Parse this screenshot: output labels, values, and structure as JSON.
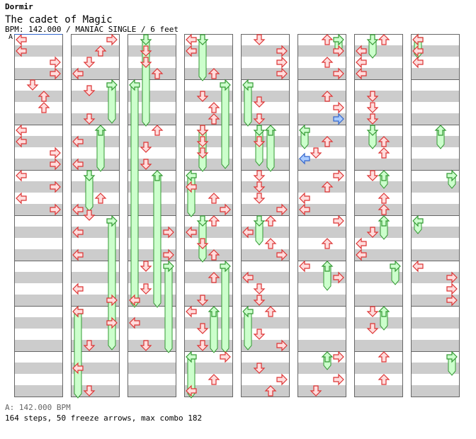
{
  "header": {
    "artist": "Dormir",
    "title": "The cadet of Magic",
    "info": "BPM: 142.000 / MANIAC SINGLE / 6 feet",
    "bpm_marker": "A"
  },
  "footer": {
    "bpm_legend": "A: 142.000 BPM",
    "stats": "164 steps, 50 freeze arrows, max combo 182"
  },
  "colors": {
    "stripe": "#cccccc",
    "arrow_fill": "#ffdddd",
    "arrow_stroke": "#dd3333",
    "freeze_fill": "#ccffcc",
    "freeze_stroke": "#339933",
    "shock_fill": "#aaccff",
    "shock_stroke": "#3366cc"
  },
  "chart_data": {
    "type": "step_chart",
    "columns": 8,
    "measures_per_column": 8,
    "lanes": [
      "left",
      "down",
      "up",
      "right"
    ],
    "notes": [
      {
        "m": 0,
        "b": 0,
        "l": 0
      },
      {
        "m": 0,
        "b": 2,
        "l": 0
      },
      {
        "m": 0,
        "b": 4,
        "l": 3
      },
      {
        "m": 0,
        "b": 6,
        "l": 3
      },
      {
        "m": 1,
        "b": 0,
        "l": 1
      },
      {
        "m": 1,
        "b": 2,
        "l": 2
      },
      {
        "m": 1,
        "b": 4,
        "l": 2
      },
      {
        "m": 2,
        "b": 0,
        "l": 0
      },
      {
        "m": 2,
        "b": 2,
        "l": 0
      },
      {
        "m": 2,
        "b": 4,
        "l": 3
      },
      {
        "m": 2,
        "b": 6,
        "l": 3
      },
      {
        "m": 3,
        "b": 0,
        "l": 0
      },
      {
        "m": 3,
        "b": 2,
        "l": 3
      },
      {
        "m": 3,
        "b": 4,
        "l": 0
      },
      {
        "m": 3,
        "b": 6,
        "l": 3
      },
      {
        "m": 8,
        "b": 0,
        "l": 3
      },
      {
        "m": 8,
        "b": 2,
        "l": 2
      },
      {
        "m": 8,
        "b": 4,
        "l": 1
      },
      {
        "m": 8,
        "b": 6,
        "l": 0
      },
      {
        "m": 9,
        "b": 1,
        "l": 1
      },
      {
        "m": 9,
        "b": 6,
        "l": 1
      },
      {
        "m": 10,
        "b": 2,
        "l": 0
      },
      {
        "m": 10,
        "b": 6,
        "l": 0
      },
      {
        "m": 11,
        "b": 4,
        "l": 2
      },
      {
        "m": 11,
        "b": 6,
        "l": 0
      },
      {
        "m": 11,
        "b": 7,
        "l": 1
      },
      {
        "m": 12,
        "b": 2,
        "l": 0
      },
      {
        "m": 12,
        "b": 6,
        "l": 0
      },
      {
        "m": 13,
        "b": 4,
        "l": 0
      },
      {
        "m": 13,
        "b": 6,
        "l": 3
      },
      {
        "m": 14,
        "b": 0,
        "l": 0
      },
      {
        "m": 14,
        "b": 2,
        "l": 3
      },
      {
        "m": 14,
        "b": 6,
        "l": 1
      },
      {
        "m": 15,
        "b": 2,
        "l": 0
      },
      {
        "m": 15,
        "b": 6,
        "l": 1
      },
      {
        "m": 16,
        "b": 2,
        "l": 1
      },
      {
        "m": 16,
        "b": 4,
        "l": 1
      },
      {
        "m": 16,
        "b": 6,
        "l": 2
      },
      {
        "m": 18,
        "b": 0,
        "l": 2
      },
      {
        "m": 18,
        "b": 3,
        "l": 1
      },
      {
        "m": 18,
        "b": 6,
        "l": 1
      },
      {
        "m": 20,
        "b": 2,
        "l": 3
      },
      {
        "m": 20,
        "b": 6,
        "l": 3
      },
      {
        "m": 21,
        "b": 0,
        "l": 1
      },
      {
        "m": 21,
        "b": 4,
        "l": 1
      },
      {
        "m": 21,
        "b": 6,
        "l": 0
      },
      {
        "m": 22,
        "b": 2,
        "l": 0
      },
      {
        "m": 22,
        "b": 6,
        "l": 1
      },
      {
        "m": 24,
        "b": 0,
        "l": 0
      },
      {
        "m": 24,
        "b": 2,
        "l": 0
      },
      {
        "m": 24,
        "b": 6,
        "l": 2
      },
      {
        "m": 25,
        "b": 2,
        "l": 1
      },
      {
        "m": 25,
        "b": 4,
        "l": 2
      },
      {
        "m": 25,
        "b": 6,
        "l": 2
      },
      {
        "m": 26,
        "b": 0,
        "l": 1
      },
      {
        "m": 26,
        "b": 2,
        "l": 1
      },
      {
        "m": 26,
        "b": 4,
        "l": 1
      },
      {
        "m": 27,
        "b": 2,
        "l": 0
      },
      {
        "m": 27,
        "b": 4,
        "l": 2
      },
      {
        "m": 27,
        "b": 6,
        "l": 3
      },
      {
        "m": 28,
        "b": 0,
        "l": 2
      },
      {
        "m": 28,
        "b": 2,
        "l": 0
      },
      {
        "m": 28,
        "b": 4,
        "l": 1
      },
      {
        "m": 28,
        "b": 6,
        "l": 2
      },
      {
        "m": 29,
        "b": 2,
        "l": 2
      },
      {
        "m": 29,
        "b": 6,
        "l": 1
      },
      {
        "m": 30,
        "b": 0,
        "l": 0
      },
      {
        "m": 30,
        "b": 3,
        "l": 1
      },
      {
        "m": 30,
        "b": 6,
        "l": 1
      },
      {
        "m": 31,
        "b": 0,
        "l": 3
      },
      {
        "m": 31,
        "b": 4,
        "l": 2
      },
      {
        "m": 31,
        "b": 6,
        "l": 0
      },
      {
        "m": 32,
        "b": 0,
        "l": 1
      },
      {
        "m": 32,
        "b": 2,
        "l": 3
      },
      {
        "m": 32,
        "b": 4,
        "l": 3
      },
      {
        "m": 32,
        "b": 6,
        "l": 3
      },
      {
        "m": 33,
        "b": 3,
        "l": 1
      },
      {
        "m": 33,
        "b": 6,
        "l": 1
      },
      {
        "m": 34,
        "b": 2,
        "l": 1
      },
      {
        "m": 35,
        "b": 0,
        "l": 1
      },
      {
        "m": 35,
        "b": 2,
        "l": 1
      },
      {
        "m": 35,
        "b": 4,
        "l": 1
      },
      {
        "m": 35,
        "b": 6,
        "l": 3
      },
      {
        "m": 36,
        "b": 0,
        "l": 2
      },
      {
        "m": 36,
        "b": 2,
        "l": 0
      },
      {
        "m": 36,
        "b": 4,
        "l": 2
      },
      {
        "m": 36,
        "b": 6,
        "l": 3
      },
      {
        "m": 37,
        "b": 2,
        "l": 0
      },
      {
        "m": 37,
        "b": 4,
        "l": 1
      },
      {
        "m": 37,
        "b": 6,
        "l": 1
      },
      {
        "m": 38,
        "b": 0,
        "l": 2
      },
      {
        "m": 38,
        "b": 4,
        "l": 1
      },
      {
        "m": 38,
        "b": 6,
        "l": 3
      },
      {
        "m": 39,
        "b": 2,
        "l": 1
      },
      {
        "m": 39,
        "b": 4,
        "l": 3
      },
      {
        "m": 39,
        "b": 6,
        "l": 2
      },
      {
        "m": 40,
        "b": 0,
        "l": 2
      },
      {
        "m": 40,
        "b": 2,
        "l": 3
      },
      {
        "m": 40,
        "b": 4,
        "l": 2
      },
      {
        "m": 40,
        "b": 6,
        "l": 3
      },
      {
        "m": 41,
        "b": 2,
        "l": 2
      },
      {
        "m": 41,
        "b": 4,
        "l": 3
      },
      {
        "m": 42,
        "b": 2,
        "l": 2
      },
      {
        "m": 42,
        "b": 4,
        "l": 1
      },
      {
        "m": 43,
        "b": 0,
        "l": 3
      },
      {
        "m": 43,
        "b": 2,
        "l": 2
      },
      {
        "m": 43,
        "b": 4,
        "l": 0
      },
      {
        "m": 43,
        "b": 6,
        "l": 0
      },
      {
        "m": 44,
        "b": 0,
        "l": 3
      },
      {
        "m": 44,
        "b": 4,
        "l": 2
      },
      {
        "m": 45,
        "b": 0,
        "l": 0
      },
      {
        "m": 45,
        "b": 2,
        "l": 3
      },
      {
        "m": 47,
        "b": 0,
        "l": 3
      },
      {
        "m": 47,
        "b": 4,
        "l": 3
      },
      {
        "m": 47,
        "b": 6,
        "l": 1
      },
      {
        "m": 48,
        "b": 0,
        "l": 2
      },
      {
        "m": 48,
        "b": 2,
        "l": 0
      },
      {
        "m": 48,
        "b": 4,
        "l": 0
      },
      {
        "m": 48,
        "b": 6,
        "l": 0
      },
      {
        "m": 49,
        "b": 2,
        "l": 1
      },
      {
        "m": 49,
        "b": 4,
        "l": 1
      },
      {
        "m": 49,
        "b": 6,
        "l": 1
      },
      {
        "m": 50,
        "b": 2,
        "l": 2
      },
      {
        "m": 50,
        "b": 4,
        "l": 2
      },
      {
        "m": 51,
        "b": 0,
        "l": 1
      },
      {
        "m": 51,
        "b": 4,
        "l": 2
      },
      {
        "m": 51,
        "b": 6,
        "l": 2
      },
      {
        "m": 52,
        "b": 2,
        "l": 1
      },
      {
        "m": 52,
        "b": 4,
        "l": 0
      },
      {
        "m": 52,
        "b": 6,
        "l": 0
      },
      {
        "m": 54,
        "b": 0,
        "l": 1
      },
      {
        "m": 54,
        "b": 3,
        "l": 1
      },
      {
        "m": 55,
        "b": 0,
        "l": 2
      },
      {
        "m": 55,
        "b": 4,
        "l": 2
      },
      {
        "m": 56,
        "b": 0,
        "l": 0
      },
      {
        "m": 56,
        "b": 2,
        "l": 0
      },
      {
        "m": 56,
        "b": 4,
        "l": 0
      },
      {
        "m": 61,
        "b": 0,
        "l": 0
      },
      {
        "m": 61,
        "b": 2,
        "l": 3
      },
      {
        "m": 61,
        "b": 4,
        "l": 3
      },
      {
        "m": 61,
        "b": 6,
        "l": 3
      }
    ],
    "shock_arrows": [
      {
        "m": 41,
        "b": 6,
        "l": 3
      },
      {
        "m": 42,
        "b": 5,
        "l": 0
      }
    ],
    "freezes": [
      {
        "m": 0,
        "b": 0,
        "len": 0,
        "l": 0,
        "sm": 0,
        "sb": 0,
        "em": 0,
        "eb": 0
      },
      {
        "sm": 9,
        "sb": 0,
        "em": 9,
        "eb": 7.5,
        "l": 3
      },
      {
        "sm": 10,
        "sb": 0,
        "em": 10,
        "eb": 8,
        "l": 2
      },
      {
        "sm": 11,
        "sb": 0,
        "em": 11,
        "eb": 7,
        "l": 1
      },
      {
        "sm": 12,
        "sb": 0,
        "em": 14,
        "eb": 7.5,
        "l": 3
      },
      {
        "sm": 14,
        "sb": 0,
        "em": 15,
        "eb": 8,
        "l": 0
      },
      {
        "sm": 16,
        "sb": 0,
        "em": 17,
        "eb": 8,
        "l": 1
      },
      {
        "sm": 17,
        "sb": 0,
        "em": 21,
        "eb": 8,
        "l": 0
      },
      {
        "sm": 19,
        "sb": 0,
        "em": 21,
        "eb": 8,
        "l": 2
      },
      {
        "sm": 21,
        "sb": 0,
        "em": 22,
        "eb": 8,
        "l": 3
      },
      {
        "sm": 24,
        "sb": 0,
        "em": 24,
        "eb": 8,
        "l": 1
      },
      {
        "sm": 25,
        "sb": 0,
        "em": 26,
        "eb": 7.5,
        "l": 3
      },
      {
        "sm": 26,
        "sb": 0,
        "em": 26,
        "eb": 8,
        "l": 1
      },
      {
        "sm": 27,
        "sb": 0,
        "em": 27,
        "eb": 8,
        "l": 0
      },
      {
        "sm": 28,
        "sb": 0,
        "em": 28,
        "eb": 8,
        "l": 1
      },
      {
        "sm": 29,
        "sb": 0,
        "em": 30,
        "eb": 8,
        "l": 3
      },
      {
        "sm": 30,
        "sb": 0,
        "em": 30,
        "eb": 8,
        "l": 2
      },
      {
        "sm": 31,
        "sb": 0,
        "em": 31,
        "eb": 8,
        "l": 0
      },
      {
        "sm": 33,
        "sb": 0,
        "em": 33,
        "eb": 8,
        "l": 0
      },
      {
        "sm": 34,
        "sb": 0,
        "em": 34,
        "eb": 8,
        "l": 2
      },
      {
        "sm": 34,
        "sb": 0,
        "em": 34,
        "eb": 7,
        "l": 1
      },
      {
        "sm": 36,
        "sb": 0,
        "em": 36,
        "eb": 5,
        "l": 1
      },
      {
        "sm": 38,
        "sb": 0,
        "em": 38,
        "eb": 7.5,
        "l": 0
      },
      {
        "sm": 40,
        "sb": 0,
        "em": 40,
        "eb": 3,
        "l": 3
      },
      {
        "sm": 42,
        "sb": 0,
        "em": 42,
        "eb": 4,
        "l": 0
      },
      {
        "sm": 45,
        "sb": 0,
        "em": 45,
        "eb": 5,
        "l": 2
      },
      {
        "sm": 47,
        "sb": 0,
        "em": 47,
        "eb": 3,
        "l": 2
      },
      {
        "sm": 48,
        "sb": 0,
        "em": 48,
        "eb": 4,
        "l": 1
      },
      {
        "sm": 50,
        "sb": 0,
        "em": 50,
        "eb": 4,
        "l": 1
      },
      {
        "sm": 51,
        "sb": 0,
        "em": 51,
        "eb": 3,
        "l": 2
      },
      {
        "sm": 52,
        "sb": 0,
        "em": 52,
        "eb": 4,
        "l": 2
      },
      {
        "sm": 53,
        "sb": 0,
        "em": 53,
        "eb": 4,
        "l": 3
      },
      {
        "sm": 54,
        "sb": 0,
        "em": 54,
        "eb": 4,
        "l": 2
      },
      {
        "sm": 56,
        "sb": 0,
        "em": 56,
        "eb": 4,
        "l": 0
      },
      {
        "sm": 58,
        "sb": 0,
        "em": 58,
        "eb": 4,
        "l": 2
      },
      {
        "sm": 59,
        "sb": 0,
        "em": 59,
        "eb": 3,
        "l": 3
      },
      {
        "sm": 60,
        "sb": 0,
        "em": 60,
        "eb": 3,
        "l": 0
      },
      {
        "sm": 63,
        "sb": 0,
        "em": 63,
        "eb": 4,
        "l": 3
      }
    ]
  }
}
